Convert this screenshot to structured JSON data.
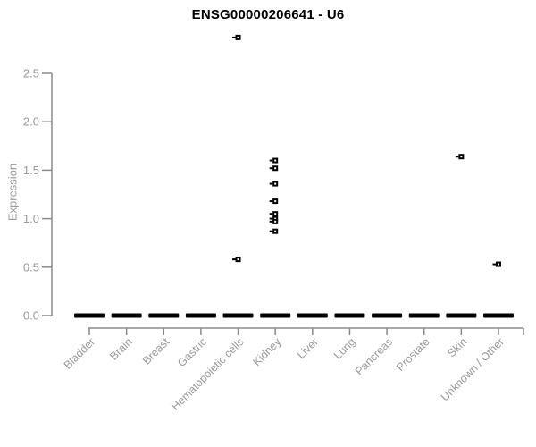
{
  "chart_data": {
    "type": "scatter",
    "subtype": "strip-plot-with-collapsed-zero-boxes",
    "title": "ENSG00000206641 - U6",
    "xlabel": "",
    "ylabel": "Expression",
    "ylim": [
      0,
      2.5
    ],
    "yticks": [
      0.0,
      0.5,
      1.0,
      1.5,
      2.0,
      2.5
    ],
    "ytick_labels": [
      "0.0",
      "0.5",
      "1.0",
      "1.5",
      "2.0",
      "2.5"
    ],
    "grid": false,
    "legend": "none",
    "marker": "open-square-with-left-tick",
    "colors": {
      "points": "#000000",
      "zero_dash": "#000000",
      "axis": "#8b8b8b",
      "tick_labels": "#999999",
      "category_labels": "#999999",
      "title": "#000000",
      "background": "#ffffff"
    },
    "categories": [
      "Bladder",
      "Brain",
      "Breast",
      "Gastric",
      "Hematopoietic cells",
      "Kidney",
      "Liver",
      "Lung",
      "Pancreas",
      "Prostate",
      "Skin",
      "Unknown / Other"
    ],
    "series": [
      {
        "category": "Bladder",
        "zero_dash": true,
        "points": []
      },
      {
        "category": "Brain",
        "zero_dash": true,
        "points": []
      },
      {
        "category": "Breast",
        "zero_dash": true,
        "points": []
      },
      {
        "category": "Gastric",
        "zero_dash": true,
        "points": []
      },
      {
        "category": "Hematopoietic cells",
        "zero_dash": true,
        "points": [
          2.87,
          0.58
        ]
      },
      {
        "category": "Kidney",
        "zero_dash": true,
        "points": [
          1.6,
          1.52,
          1.36,
          1.18,
          1.05,
          1.0,
          0.97,
          0.87
        ]
      },
      {
        "category": "Liver",
        "zero_dash": true,
        "points": []
      },
      {
        "category": "Lung",
        "zero_dash": true,
        "points": []
      },
      {
        "category": "Pancreas",
        "zero_dash": true,
        "points": []
      },
      {
        "category": "Prostate",
        "zero_dash": true,
        "points": []
      },
      {
        "category": "Skin",
        "zero_dash": true,
        "points": [
          1.64
        ]
      },
      {
        "category": "Unknown / Other",
        "zero_dash": true,
        "points": [
          0.53
        ]
      }
    ],
    "notes": "Thick black dash at y=0 for every category represents many overlapping zero-expression samples; open-square markers are non-zero samples."
  }
}
